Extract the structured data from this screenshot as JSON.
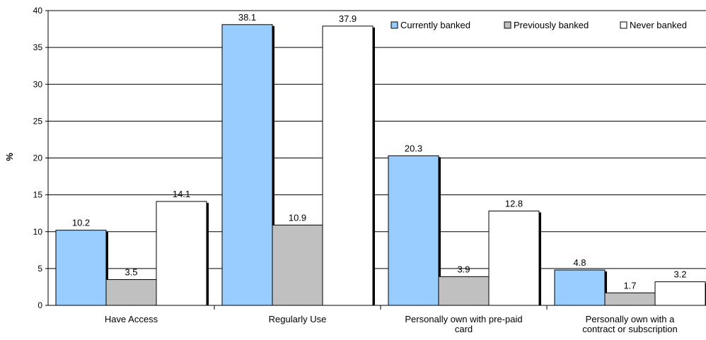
{
  "chart_data": {
    "type": "bar",
    "title": "",
    "xlabel": "",
    "ylabel": "%",
    "ylim": [
      0,
      40
    ],
    "yticks": [
      0,
      5,
      10,
      15,
      20,
      25,
      30,
      35,
      40
    ],
    "grid": true,
    "legend_position": "top-right",
    "categories": [
      [
        "Have Access"
      ],
      [
        "Regularly Use"
      ],
      [
        "Personally own with pre-paid",
        "card"
      ],
      [
        "Personally own with a",
        "contract or subscription"
      ]
    ],
    "series": [
      {
        "name": "Currently banked",
        "color": "#99ccff",
        "values": [
          10.2,
          38.1,
          20.3,
          4.8
        ]
      },
      {
        "name": "Previously banked",
        "color": "#c0c0c0",
        "values": [
          3.5,
          10.9,
          3.9,
          1.7
        ]
      },
      {
        "name": "Never banked",
        "color": "#ffffff",
        "values": [
          14.1,
          37.9,
          12.8,
          3.2
        ]
      }
    ]
  }
}
